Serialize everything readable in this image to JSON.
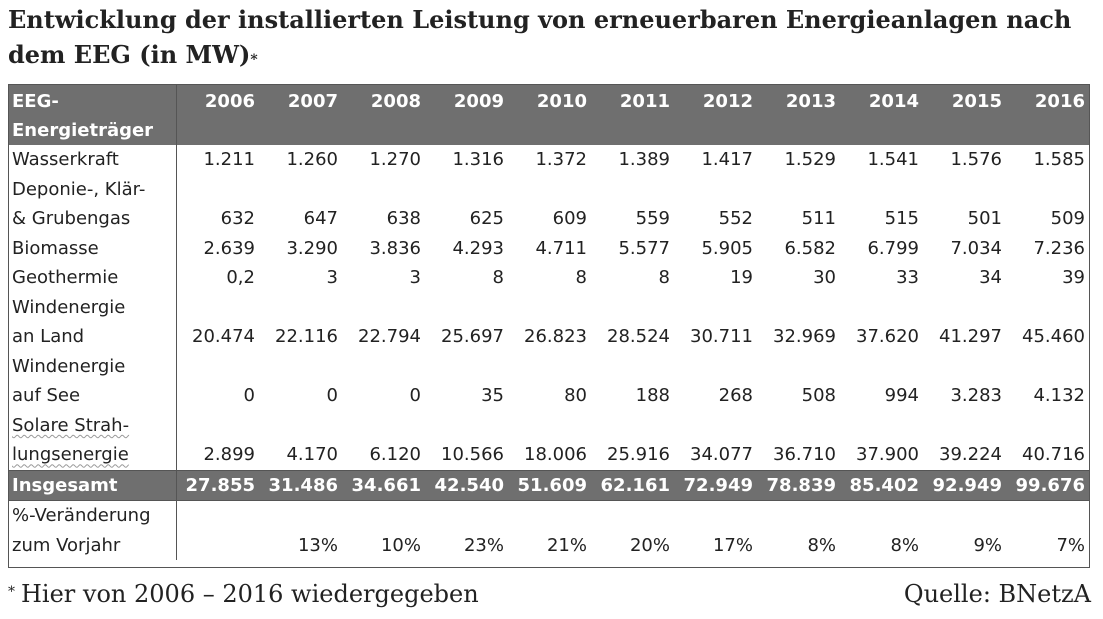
{
  "title": {
    "text": "Entwicklung der installierten Leistung von erneuerbaren Energieanlagen nach dem EEG (in MW)",
    "marker": "*"
  },
  "table": {
    "header_label": [
      "EEG-",
      "Energieträger"
    ],
    "years": [
      "2006",
      "2007",
      "2008",
      "2009",
      "2010",
      "2011",
      "2012",
      "2013",
      "2014",
      "2015",
      "2016"
    ],
    "rows": [
      {
        "label": [
          "Wasserkraft"
        ],
        "values": [
          "1.211",
          "1.260",
          "1.270",
          "1.316",
          "1.372",
          "1.389",
          "1.417",
          "1.529",
          "1.541",
          "1.576",
          "1.585"
        ]
      },
      {
        "label": [
          "Deponie-, Klär-",
          "& Grubengas"
        ],
        "values": [
          "632",
          "647",
          "638",
          "625",
          "609",
          "559",
          "552",
          "511",
          "515",
          "501",
          "509"
        ]
      },
      {
        "label": [
          "Biomasse"
        ],
        "values": [
          "2.639",
          "3.290",
          "3.836",
          "4.293",
          "4.711",
          "5.577",
          "5.905",
          "6.582",
          "6.799",
          "7.034",
          "7.236"
        ]
      },
      {
        "label": [
          "Geothermie"
        ],
        "values": [
          "0,2",
          "3",
          "3",
          "8",
          "8",
          "8",
          "19",
          "30",
          "33",
          "34",
          "39"
        ]
      },
      {
        "label": [
          "Windenergie",
          "an Land"
        ],
        "values": [
          "20.474",
          "22.116",
          "22.794",
          "25.697",
          "26.823",
          "28.524",
          "30.711",
          "32.969",
          "37.620",
          "41.297",
          "45.460"
        ]
      },
      {
        "label": [
          "Windenergie",
          "auf See"
        ],
        "values": [
          "0",
          "0",
          "0",
          "35",
          "80",
          "188",
          "268",
          "508",
          "994",
          "3.283",
          "4.132"
        ]
      },
      {
        "label": [
          "Solare Strah-",
          "lungsenergie"
        ],
        "values": [
          "2.899",
          "4.170",
          "6.120",
          "10.566",
          "18.006",
          "25.916",
          "34.077",
          "36.710",
          "37.900",
          "39.224",
          "40.716"
        ]
      }
    ],
    "total": {
      "label": "Insgesamt",
      "values": [
        "27.855",
        "31.486",
        "34.661",
        "42.540",
        "51.609",
        "62.161",
        "72.949",
        "78.839",
        "85.402",
        "92.949",
        "99.676"
      ]
    },
    "change": {
      "label": [
        "%-Veränderung",
        "zum Vorjahr"
      ],
      "values": [
        "",
        "13%",
        "10%",
        "23%",
        "21%",
        "20%",
        "17%",
        "8%",
        "8%",
        "9%",
        "7%"
      ]
    }
  },
  "footer": {
    "note_marker": "*",
    "note": "Hier von 2006 – 2016 wiedergegeben",
    "source": "Quelle: BNetzA"
  },
  "colors": {
    "header_bg": "#6f6f6f",
    "header_text": "#ffffff",
    "border": "#555555"
  }
}
